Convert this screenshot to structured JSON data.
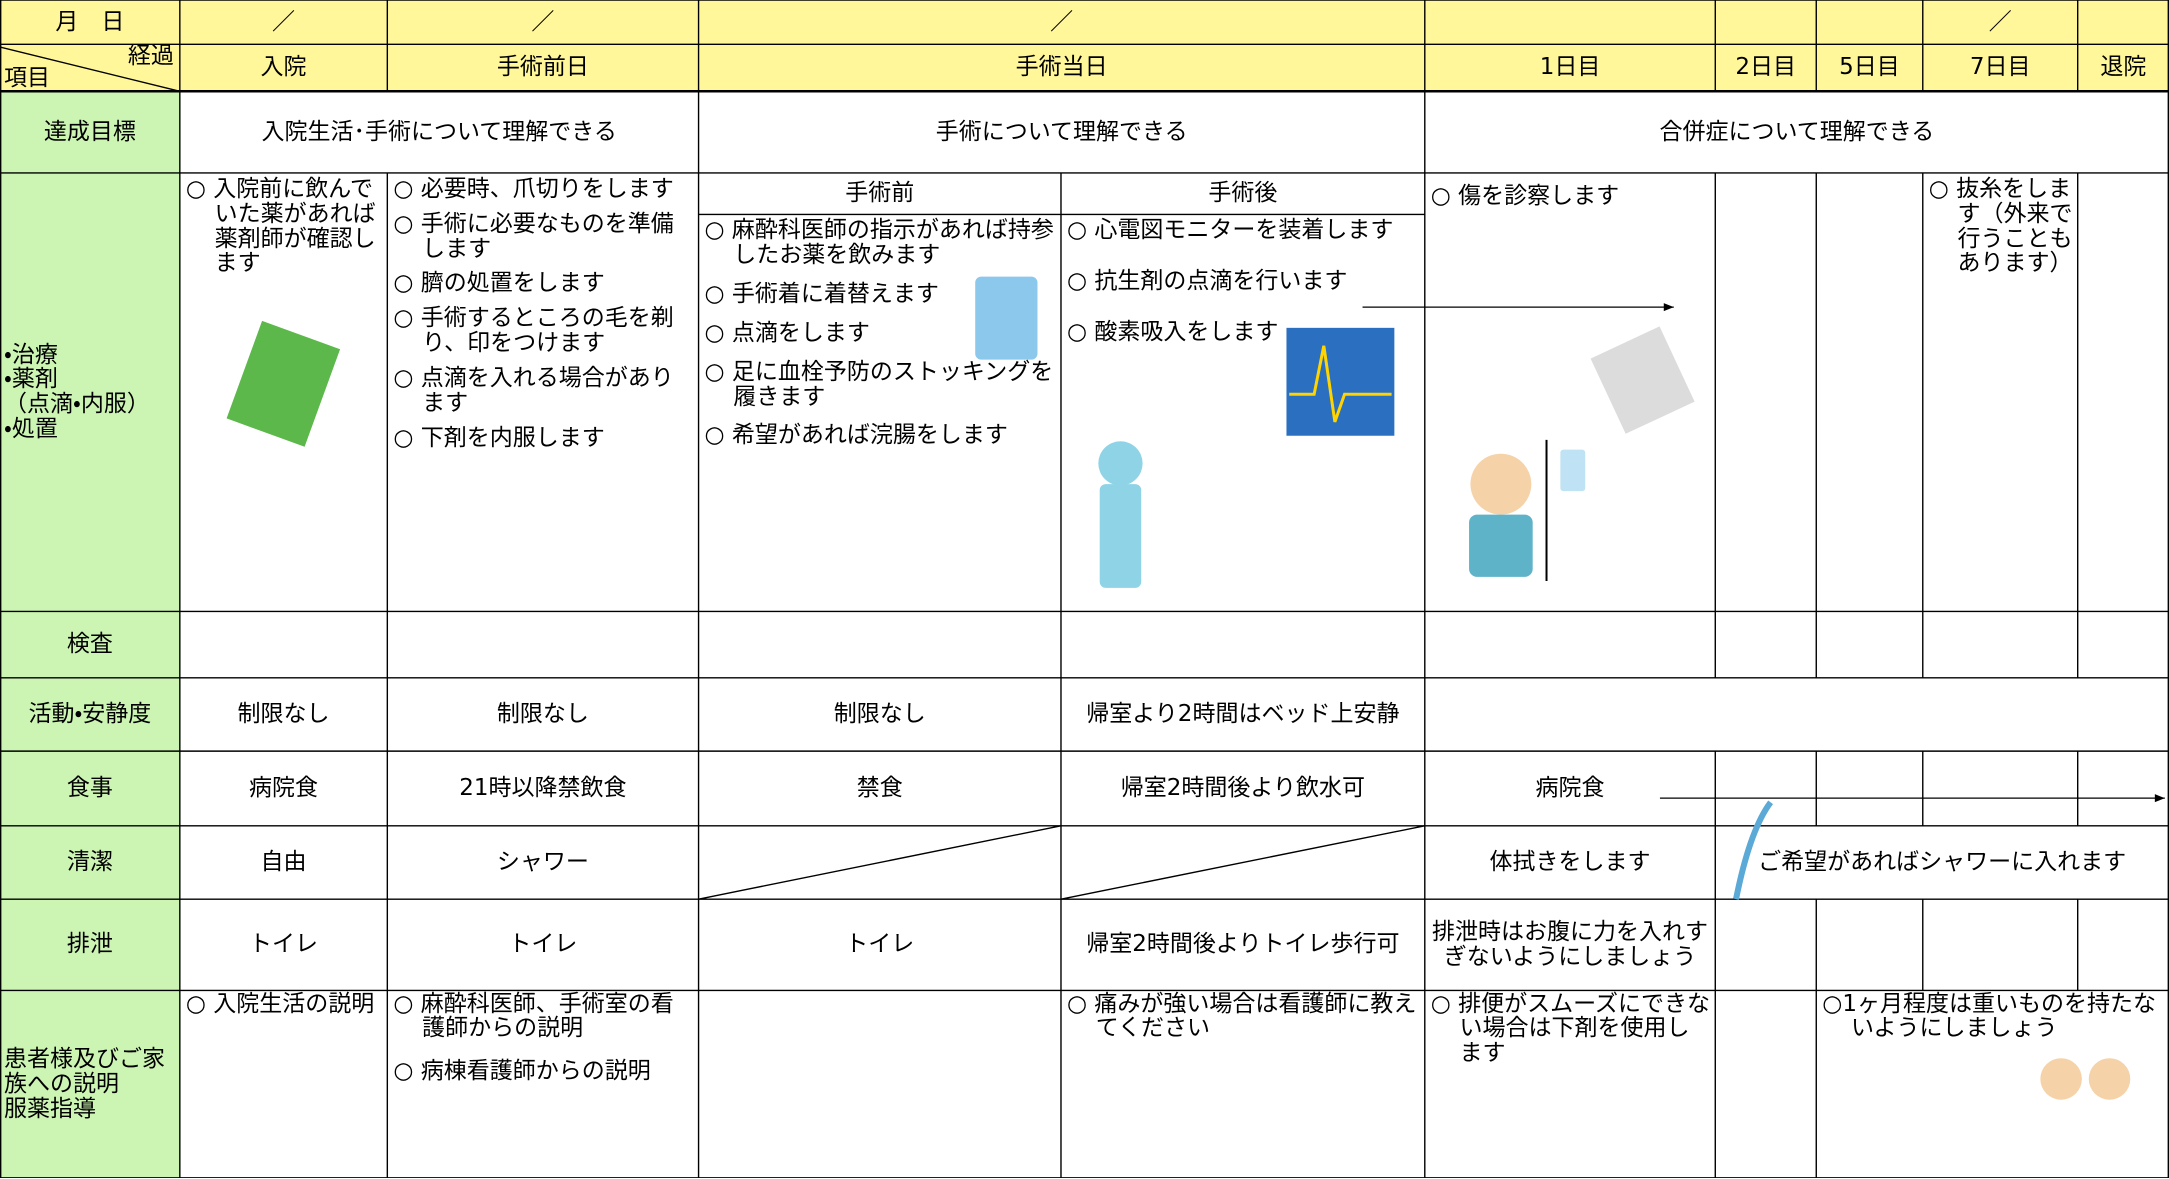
{
  "header": {
    "date_label": "月　日",
    "date_marks": [
      "／",
      "／",
      "／",
      "／"
    ],
    "corner_top": "経過",
    "corner_bottom": "項目",
    "stages": [
      "入院",
      "手術前日",
      "手術当日",
      "1日目",
      "2日目",
      "5日目",
      "7日目",
      "退院"
    ]
  },
  "goal": {
    "label": "達成目標",
    "values": [
      "入院生活･手術について理解できる",
      "手術について理解できる",
      "合併症について理解できる"
    ]
  },
  "treatment": {
    "label": [
      "・治療",
      "・薬剤",
      "（点滴・内服）",
      "・処置"
    ],
    "admission": [
      "○ 入院前に飲んでいた薬があれば薬剤師が確認します"
    ],
    "pre_op_day": [
      "○ 必要時、爪切りをします",
      "○ 手術に必要なものを準備します",
      "○ 臍の処置をします",
      "○ 手術するところの毛を剃り、印をつけます",
      "○ 点滴を入れる場合があります",
      "○ 下剤を内服します"
    ],
    "pre_op_header": "手術前",
    "pre_op": [
      "○ 麻酔科医師の指示があれば持参したお薬を飲みます",
      "○ 手術着に着替えます",
      "○ 点滴をします",
      "○ 足に血栓予防のストッキングを履きます",
      "○ 希望があれば浣腸をします"
    ],
    "post_op_header": "手術後",
    "post_op": [
      "○ 心電図モニターを装着します",
      "○ 抗生剤の点滴を行います",
      "○ 酸素吸入をします"
    ],
    "day1": [
      "○ 傷を診察します"
    ],
    "day7": [
      "○ 抜糸をします（外来で行うこともあります）"
    ]
  },
  "exam": {
    "label": "検査"
  },
  "activity": {
    "label": "活動・安静度",
    "values": [
      "制限なし",
      "制限なし",
      "制限なし",
      "帰室より2時間はベッド上安静"
    ]
  },
  "meal": {
    "label": "食事",
    "values": [
      "病院食",
      "21時以降禁飲食",
      "禁食",
      "帰室2時間後より飲水可",
      "病院食"
    ]
  },
  "hygiene": {
    "label": "清潔",
    "values": [
      "自由",
      "シャワー",
      "体拭きをします",
      "ご希望があればシャワーに入れます"
    ]
  },
  "excretion": {
    "label": "排泄",
    "values": [
      "トイレ",
      "トイレ",
      "トイレ",
      "帰室2時間後よりトイレ歩行可",
      "排泄時はお腹に力を入れすぎないようにしましょう"
    ]
  },
  "education": {
    "label": [
      "患者様及びご家族への説明",
      "服薬指導"
    ],
    "admission": [
      "○ 入院生活の説明"
    ],
    "pre_op_day": [
      "○ 麻酔科医師、手術室の看護師からの説明",
      "○ 病棟看護師からの説明"
    ],
    "post_op": [
      "○ 痛みが強い場合は看護師に教えてください"
    ],
    "day1": [
      "○ 排便がスムーズにできない場合は下剤を使用します"
    ],
    "day7": [
      "○1ヶ月程度は重いものを持たないようにしましょう"
    ]
  }
}
